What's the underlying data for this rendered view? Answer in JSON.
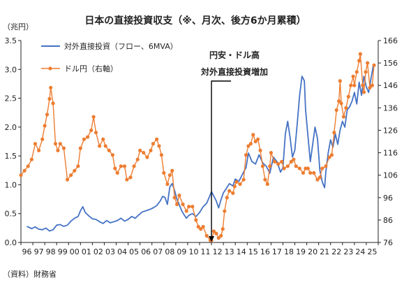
{
  "chart_data": {
    "type": "line",
    "title": "日本の直接投資収支（※、月次、後方6か月累積）",
    "left_unit": "（兆円）",
    "source": "（資料）財務省",
    "x_tick_labels": [
      "96",
      "97",
      "98",
      "99",
      "00",
      "01",
      "02",
      "03",
      "04",
      "05",
      "06",
      "07",
      "08",
      "09",
      "10",
      "11",
      "12",
      "13",
      "14",
      "15",
      "16",
      "17",
      "18",
      "19",
      "20",
      "21",
      "22",
      "23",
      "24",
      "25"
    ],
    "x_range": [
      1996,
      2026
    ],
    "y_left": {
      "range": [
        0,
        3.5
      ],
      "ticks": [
        "0.0",
        "0.5",
        "1.0",
        "1.5",
        "2.0",
        "2.5",
        "3.0",
        "3.5"
      ]
    },
    "y_right": {
      "range": [
        76,
        166
      ],
      "ticks": [
        "76",
        "86",
        "96",
        "106",
        "116",
        "126",
        "136",
        "146",
        "156",
        "166"
      ]
    },
    "grid": false,
    "legend_position": "top-left",
    "annotation": {
      "line1": "円安・ドル高",
      "line2": "対外直接投資増加",
      "x": 2012.0
    },
    "series": [
      {
        "name": "対外直接投資（フロー、6MVA）",
        "axis": "left",
        "color": "#4472C4",
        "marker": "none",
        "points": [
          [
            1996.5,
            0.28
          ],
          [
            1996.9,
            0.24
          ],
          [
            1997.2,
            0.27
          ],
          [
            1997.5,
            0.23
          ],
          [
            1997.8,
            0.22
          ],
          [
            1998.1,
            0.25
          ],
          [
            1998.4,
            0.2
          ],
          [
            1998.7,
            0.22
          ],
          [
            1999.0,
            0.3
          ],
          [
            1999.3,
            0.31
          ],
          [
            1999.6,
            0.28
          ],
          [
            1999.9,
            0.3
          ],
          [
            2000.2,
            0.37
          ],
          [
            2000.5,
            0.42
          ],
          [
            2000.8,
            0.45
          ],
          [
            2001.0,
            0.55
          ],
          [
            2001.2,
            0.62
          ],
          [
            2001.4,
            0.52
          ],
          [
            2001.7,
            0.46
          ],
          [
            2002.0,
            0.41
          ],
          [
            2002.3,
            0.4
          ],
          [
            2002.6,
            0.36
          ],
          [
            2002.9,
            0.33
          ],
          [
            2003.2,
            0.38
          ],
          [
            2003.5,
            0.34
          ],
          [
            2003.8,
            0.36
          ],
          [
            2004.1,
            0.38
          ],
          [
            2004.4,
            0.42
          ],
          [
            2004.7,
            0.37
          ],
          [
            2005.0,
            0.4
          ],
          [
            2005.3,
            0.45
          ],
          [
            2005.6,
            0.42
          ],
          [
            2005.9,
            0.48
          ],
          [
            2006.2,
            0.53
          ],
          [
            2006.5,
            0.55
          ],
          [
            2006.8,
            0.57
          ],
          [
            2007.1,
            0.6
          ],
          [
            2007.4,
            0.64
          ],
          [
            2007.7,
            0.72
          ],
          [
            2007.9,
            0.8
          ],
          [
            2008.1,
            0.78
          ],
          [
            2008.3,
            0.66
          ],
          [
            2008.5,
            0.96
          ],
          [
            2008.7,
            1.02
          ],
          [
            2008.9,
            0.9
          ],
          [
            2009.1,
            0.75
          ],
          [
            2009.3,
            0.65
          ],
          [
            2009.5,
            0.55
          ],
          [
            2009.7,
            0.48
          ],
          [
            2009.9,
            0.42
          ],
          [
            2010.1,
            0.47
          ],
          [
            2010.4,
            0.5
          ],
          [
            2010.7,
            0.45
          ],
          [
            2011.0,
            0.52
          ],
          [
            2011.3,
            0.62
          ],
          [
            2011.6,
            0.68
          ],
          [
            2011.8,
            0.78
          ],
          [
            2012.0,
            0.88
          ],
          [
            2012.2,
            0.8
          ],
          [
            2012.4,
            0.72
          ],
          [
            2012.6,
            0.6
          ],
          [
            2012.8,
            0.74
          ],
          [
            2013.0,
            0.86
          ],
          [
            2013.2,
            0.92
          ],
          [
            2013.5,
            1.02
          ],
          [
            2013.8,
            0.98
          ],
          [
            2014.0,
            1.1
          ],
          [
            2014.3,
            1.06
          ],
          [
            2014.6,
            1.18
          ],
          [
            2014.9,
            1.3
          ],
          [
            2015.1,
            1.55
          ],
          [
            2015.4,
            1.4
          ],
          [
            2015.7,
            1.36
          ],
          [
            2016.0,
            1.52
          ],
          [
            2016.3,
            1.38
          ],
          [
            2016.6,
            1.32
          ],
          [
            2016.9,
            1.2
          ],
          [
            2017.2,
            1.48
          ],
          [
            2017.5,
            1.4
          ],
          [
            2017.8,
            1.22
          ],
          [
            2018.0,
            1.3
          ],
          [
            2018.2,
            1.88
          ],
          [
            2018.4,
            2.1
          ],
          [
            2018.6,
            1.82
          ],
          [
            2018.8,
            1.48
          ],
          [
            2019.0,
            1.6
          ],
          [
            2019.2,
            2.05
          ],
          [
            2019.4,
            2.55
          ],
          [
            2019.6,
            2.88
          ],
          [
            2019.8,
            2.8
          ],
          [
            2019.9,
            2.3
          ],
          [
            2020.1,
            1.85
          ],
          [
            2020.3,
            1.4
          ],
          [
            2020.5,
            1.7
          ],
          [
            2020.7,
            2.0
          ],
          [
            2020.9,
            1.8
          ],
          [
            2021.1,
            1.25
          ],
          [
            2021.3,
            1.05
          ],
          [
            2021.5,
            0.95
          ],
          [
            2021.6,
            1.22
          ],
          [
            2021.8,
            1.55
          ],
          [
            2022.0,
            1.78
          ],
          [
            2022.2,
            1.65
          ],
          [
            2022.4,
            1.88
          ],
          [
            2022.6,
            1.7
          ],
          [
            2022.8,
            1.95
          ],
          [
            2023.0,
            2.1
          ],
          [
            2023.2,
            2.0
          ],
          [
            2023.4,
            2.3
          ],
          [
            2023.6,
            2.35
          ],
          [
            2023.8,
            2.45
          ],
          [
            2024.0,
            2.6
          ],
          [
            2024.2,
            2.4
          ],
          [
            2024.4,
            2.78
          ],
          [
            2024.6,
            2.55
          ],
          [
            2024.8,
            2.88
          ],
          [
            2025.0,
            2.7
          ],
          [
            2025.2,
            2.6
          ],
          [
            2025.4,
            2.85
          ],
          [
            2025.6,
            3.08
          ]
        ]
      },
      {
        "name": "ドル円（右軸）",
        "axis": "right",
        "color": "#ED7D31",
        "marker": "circle",
        "points": [
          [
            1996.0,
            106
          ],
          [
            1996.3,
            108
          ],
          [
            1996.6,
            110
          ],
          [
            1996.9,
            113
          ],
          [
            1997.2,
            120
          ],
          [
            1997.5,
            117
          ],
          [
            1997.8,
            122
          ],
          [
            1998.0,
            128
          ],
          [
            1998.2,
            133
          ],
          [
            1998.4,
            140
          ],
          [
            1998.5,
            145
          ],
          [
            1998.7,
            138
          ],
          [
            1998.9,
            120
          ],
          [
            1999.1,
            117
          ],
          [
            1999.3,
            120
          ],
          [
            1999.6,
            118
          ],
          [
            1999.9,
            104
          ],
          [
            2000.2,
            106
          ],
          [
            2000.5,
            108
          ],
          [
            2000.8,
            110
          ],
          [
            2001.0,
            118
          ],
          [
            2001.3,
            122
          ],
          [
            2001.6,
            123
          ],
          [
            2001.9,
            126
          ],
          [
            2002.1,
            132
          ],
          [
            2002.3,
            125
          ],
          [
            2002.6,
            119
          ],
          [
            2002.9,
            122
          ],
          [
            2003.1,
            119
          ],
          [
            2003.4,
            117
          ],
          [
            2003.7,
            115
          ],
          [
            2003.9,
            109
          ],
          [
            2004.1,
            107
          ],
          [
            2004.4,
            110
          ],
          [
            2004.7,
            110
          ],
          [
            2004.9,
            104
          ],
          [
            2005.2,
            105
          ],
          [
            2005.5,
            110
          ],
          [
            2005.8,
            113
          ],
          [
            2006.0,
            117
          ],
          [
            2006.3,
            116
          ],
          [
            2006.6,
            114
          ],
          [
            2006.9,
            117
          ],
          [
            2007.1,
            120
          ],
          [
            2007.4,
            122
          ],
          [
            2007.6,
            119
          ],
          [
            2007.8,
            115
          ],
          [
            2008.0,
            107
          ],
          [
            2008.3,
            102
          ],
          [
            2008.5,
            106
          ],
          [
            2008.7,
            108
          ],
          [
            2008.9,
            96
          ],
          [
            2009.1,
            93
          ],
          [
            2009.3,
            97
          ],
          [
            2009.6,
            93
          ],
          [
            2009.9,
            90
          ],
          [
            2010.1,
            92
          ],
          [
            2010.4,
            92
          ],
          [
            2010.7,
            86
          ],
          [
            2010.9,
            83
          ],
          [
            2011.1,
            82
          ],
          [
            2011.3,
            83
          ],
          [
            2011.6,
            79
          ],
          [
            2011.9,
            77
          ],
          [
            2012.0,
            77
          ],
          [
            2012.2,
            81
          ],
          [
            2012.4,
            80
          ],
          [
            2012.6,
            78
          ],
          [
            2012.8,
            79
          ],
          [
            2012.95,
            82
          ],
          [
            2013.1,
            90
          ],
          [
            2013.3,
            96
          ],
          [
            2013.5,
            99
          ],
          [
            2013.8,
            98
          ],
          [
            2013.95,
            101
          ],
          [
            2014.1,
            103
          ],
          [
            2014.4,
            102
          ],
          [
            2014.7,
            104
          ],
          [
            2014.9,
            115
          ],
          [
            2015.1,
            119
          ],
          [
            2015.3,
            120
          ],
          [
            2015.5,
            124
          ],
          [
            2015.7,
            121
          ],
          [
            2015.9,
            122
          ],
          [
            2016.1,
            117
          ],
          [
            2016.3,
            110
          ],
          [
            2016.5,
            104
          ],
          [
            2016.7,
            102
          ],
          [
            2016.9,
            110
          ],
          [
            2017.0,
            116
          ],
          [
            2017.3,
            112
          ],
          [
            2017.6,
            111
          ],
          [
            2017.9,
            112
          ],
          [
            2018.1,
            109
          ],
          [
            2018.4,
            110
          ],
          [
            2018.7,
            112
          ],
          [
            2018.9,
            113
          ],
          [
            2019.1,
            110
          ],
          [
            2019.4,
            109
          ],
          [
            2019.7,
            107
          ],
          [
            2019.9,
            109
          ],
          [
            2020.1,
            109
          ],
          [
            2020.3,
            107
          ],
          [
            2020.6,
            107
          ],
          [
            2020.9,
            104
          ],
          [
            2021.1,
            105
          ],
          [
            2021.3,
            109
          ],
          [
            2021.6,
            110
          ],
          [
            2021.9,
            114
          ],
          [
            2022.1,
            115
          ],
          [
            2022.3,
            125
          ],
          [
            2022.5,
            135
          ],
          [
            2022.7,
            139
          ],
          [
            2022.8,
            148
          ],
          [
            2022.9,
            138
          ],
          [
            2023.1,
            132
          ],
          [
            2023.3,
            136
          ],
          [
            2023.5,
            141
          ],
          [
            2023.7,
            146
          ],
          [
            2023.9,
            150
          ],
          [
            2024.0,
            146
          ],
          [
            2024.2,
            152
          ],
          [
            2024.4,
            157
          ],
          [
            2024.5,
            160
          ],
          [
            2024.7,
            146
          ],
          [
            2024.8,
            143
          ],
          [
            2024.95,
            152
          ],
          [
            2025.1,
            156
          ],
          [
            2025.3,
            145
          ],
          [
            2025.5,
            146
          ],
          [
            2025.65,
            155
          ]
        ]
      }
    ]
  }
}
